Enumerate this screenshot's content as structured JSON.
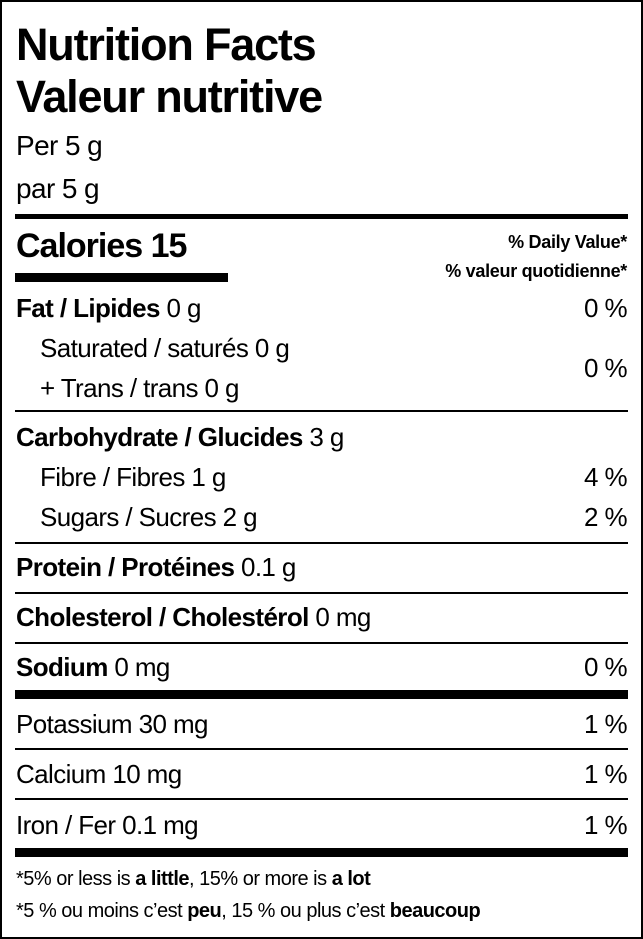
{
  "title_en": "Nutrition Facts",
  "title_fr": "Valeur nutritive",
  "serving_en": "Per 5 g",
  "serving_fr": "par 5 g",
  "calories": {
    "label": "Calories",
    "value": "15"
  },
  "dv_header_en": "% Daily Value*",
  "dv_header_fr": "% valeur quotidienne*",
  "rows": {
    "fat": {
      "label": "Fat / Lipides",
      "amount": "0 g",
      "dv": "0 %"
    },
    "saturated": {
      "label": "Saturated / saturés",
      "amount": "0 g"
    },
    "trans": {
      "label": "+ Trans / trans",
      "amount": "0 g"
    },
    "sat_trans_dv": "0 %",
    "carb": {
      "label": "Carbohydrate / Glucides",
      "amount": "3 g"
    },
    "fibre": {
      "label": "Fibre / Fibres",
      "amount": "1 g",
      "dv": "4 %"
    },
    "sugars": {
      "label": "Sugars / Sucres",
      "amount": "2 g",
      "dv": "2 %"
    },
    "protein": {
      "label": "Protein / Protéines",
      "amount": "0.1 g"
    },
    "cholesterol": {
      "label": "Cholesterol / Cholestérol",
      "amount": "0 mg"
    },
    "sodium": {
      "label": "Sodium",
      "amount": "0 mg",
      "dv": "0 %"
    },
    "potassium": {
      "label": "Potassium",
      "amount": "30 mg",
      "dv": "1 %"
    },
    "calcium": {
      "label": "Calcium",
      "amount": "10 mg",
      "dv": "1 %"
    },
    "iron": {
      "label": "Iron / Fer",
      "amount": "0.1 mg",
      "dv": "1 %"
    }
  },
  "footnote_en": {
    "a": "*5% or less is ",
    "b": "a little",
    "c": ", 15% or more is ",
    "d": "a lot"
  },
  "footnote_fr": {
    "a": "*5 % ou moins c’est ",
    "b": "peu",
    "c": ", 15 % ou plus c’est ",
    "d": "beaucoup"
  }
}
